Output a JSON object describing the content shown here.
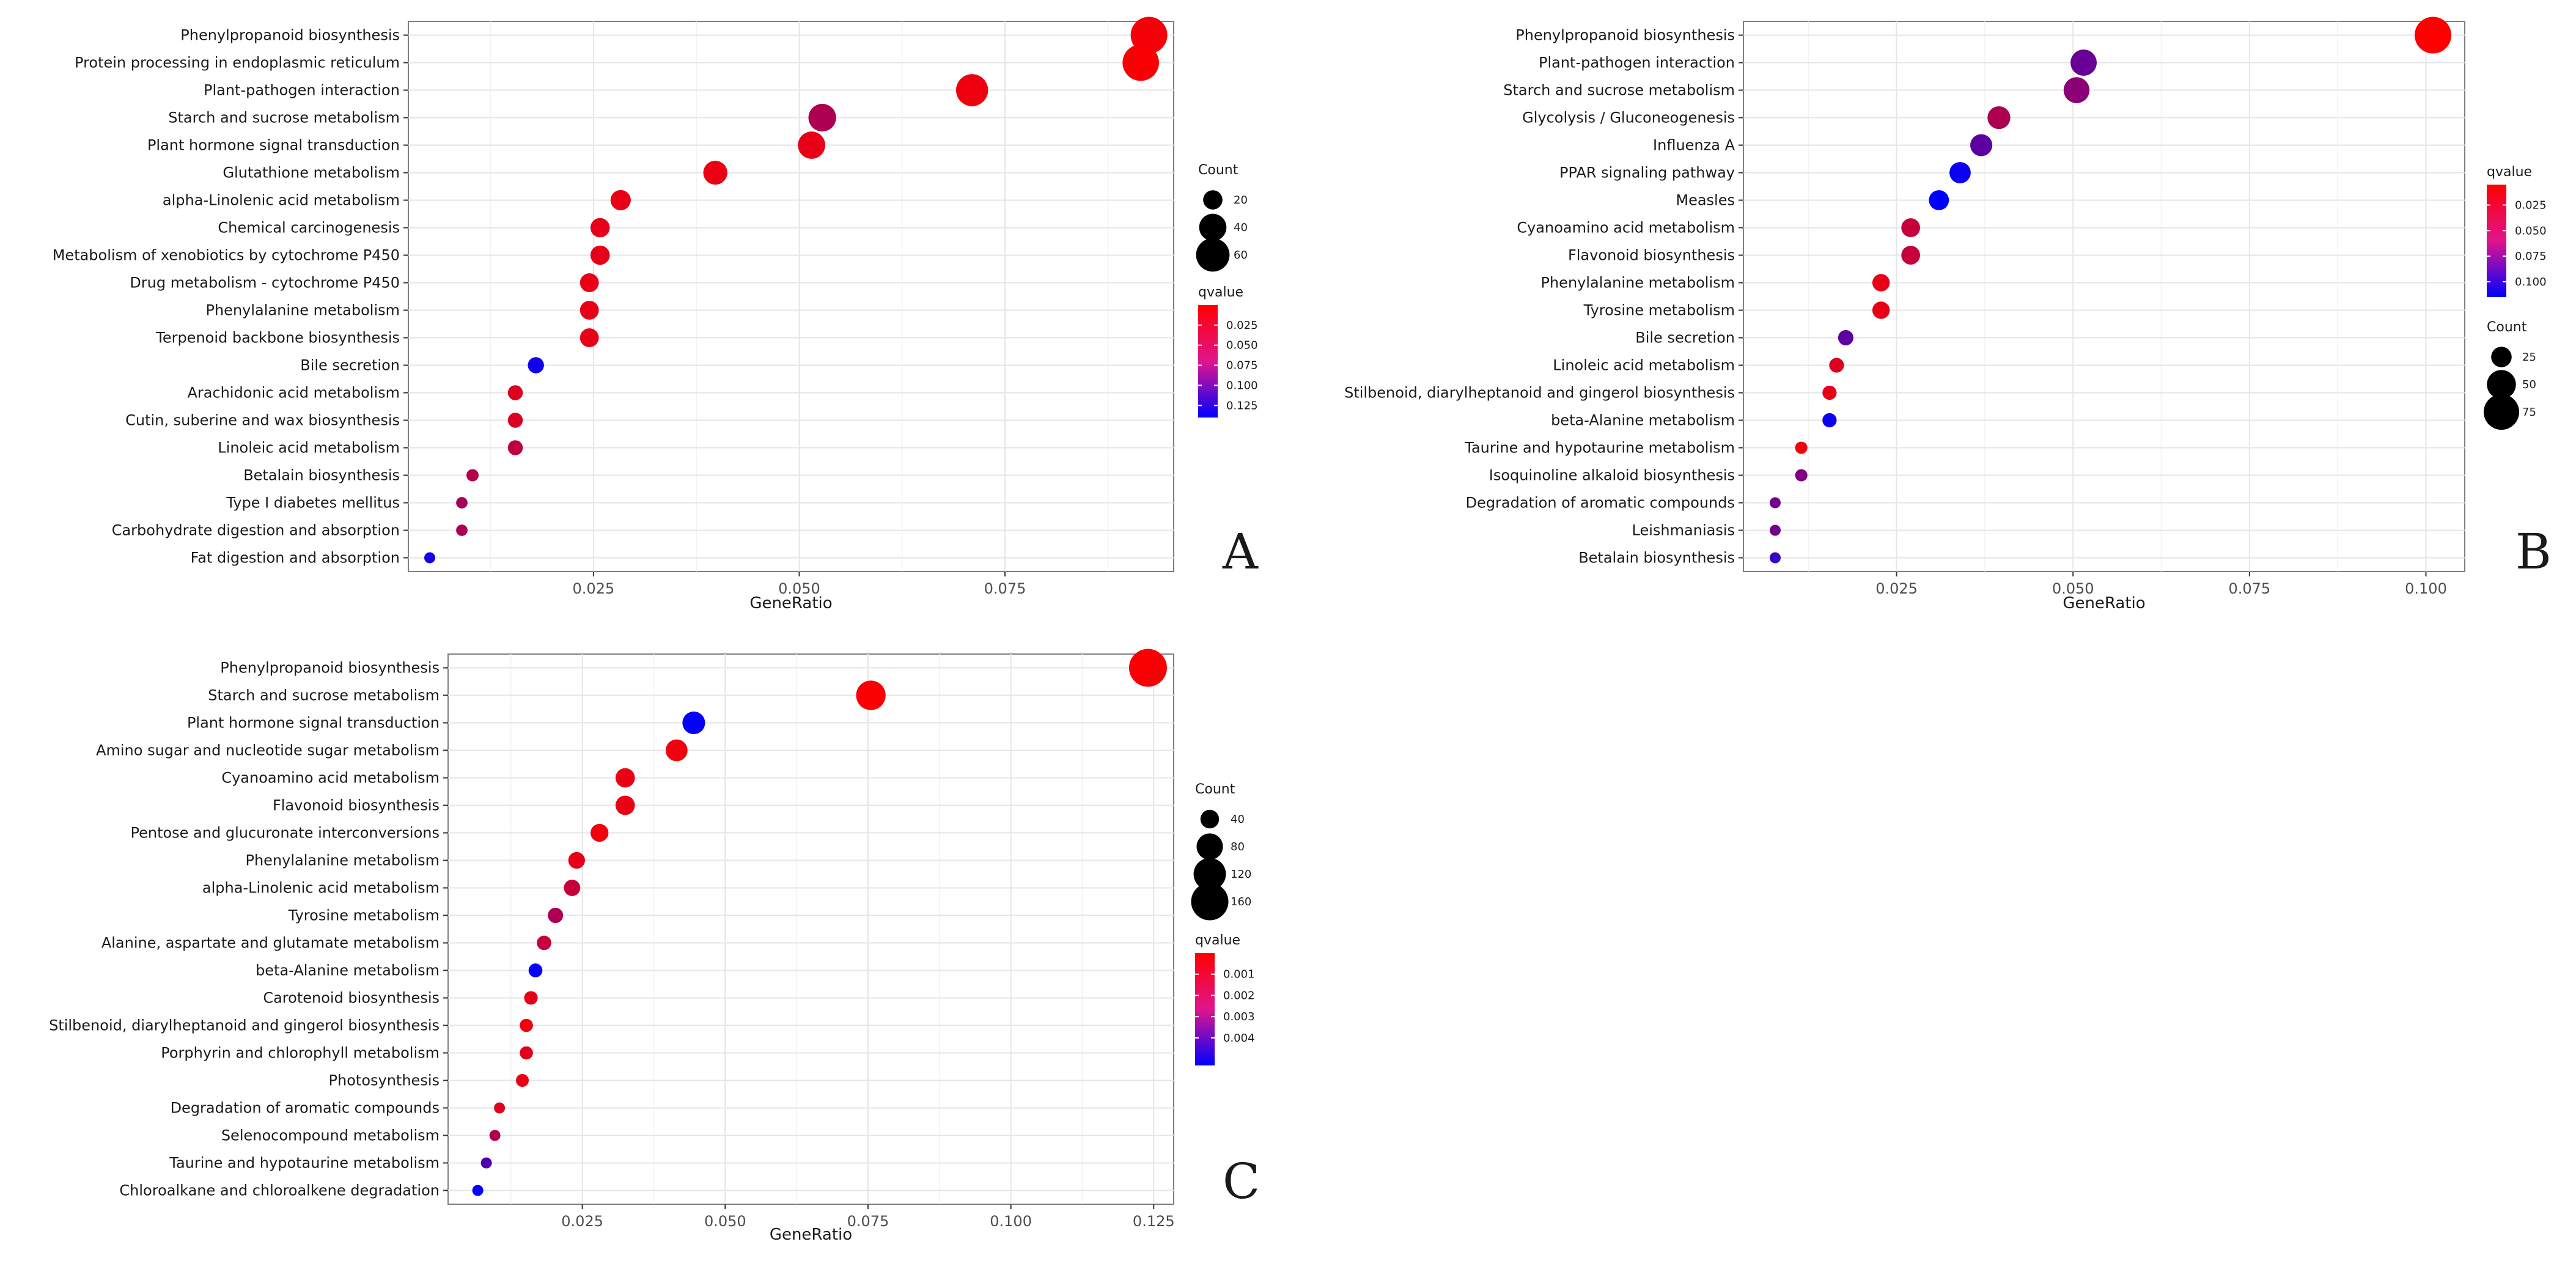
{
  "figure_labels": [
    "A",
    "B",
    "C"
  ],
  "chart_data": [
    {
      "type": "scatter",
      "panel": "A",
      "xlabel": "GeneRatio",
      "xlim": [
        0.0025,
        0.0955
      ],
      "xticks": [
        "0.025",
        "0.050",
        "0.075"
      ],
      "xtick_values": [
        0.025,
        0.05,
        0.075
      ],
      "categories": [
        "Phenylpropanoid biosynthesis",
        "Protein processing in endoplasmic reticulum",
        "Plant-pathogen interaction",
        "Starch and sucrose metabolism",
        "Plant hormone signal transduction",
        "Glutathione metabolism",
        "alpha-Linolenic acid metabolism",
        "Chemical carcinogenesis",
        "Metabolism of xenobiotics by cytochrome P450",
        "Drug metabolism - cytochrome P450",
        "Phenylalanine metabolism",
        "Terpenoid backbone biosynthesis",
        "Bile secretion",
        "Arachidonic acid metabolism",
        "Cutin, suberine and wax biosynthesis",
        "Linoleic acid metabolism",
        "Betalain biosynthesis",
        "Type I diabetes mellitus",
        "Carbohydrate digestion and absorption",
        "Fat digestion and absorption"
      ],
      "gene_ratio": [
        0.0925,
        0.0915,
        0.071,
        0.0528,
        0.0515,
        0.0398,
        0.0283,
        0.0258,
        0.0258,
        0.0245,
        0.0245,
        0.0245,
        0.018,
        0.0155,
        0.0155,
        0.0155,
        0.0103,
        0.009,
        0.009,
        0.0051
      ],
      "count": [
        72,
        71,
        55,
        41,
        40,
        31,
        22,
        20,
        20,
        19,
        19,
        19,
        14,
        12,
        12,
        12,
        8,
        7,
        7,
        4
      ],
      "qvalue": [
        0.005,
        0.003,
        0.008,
        0.045,
        0.012,
        0.01,
        0.012,
        0.014,
        0.014,
        0.012,
        0.013,
        0.012,
        0.13,
        0.018,
        0.02,
        0.035,
        0.04,
        0.05,
        0.045,
        0.13
      ],
      "size_legend": {
        "title": "Count",
        "values": [
          20,
          40,
          60
        ],
        "labels": [
          "20",
          "40",
          "60"
        ]
      },
      "color_legend": {
        "title": "qvalue",
        "range": [
          0.0,
          0.14
        ],
        "ticks": [
          0.025,
          0.05,
          0.075,
          0.1,
          0.125
        ],
        "labels": [
          "0.025",
          "0.050",
          "0.075",
          "0.100",
          "0.125"
        ],
        "low_color": "#FF0000",
        "high_color": "#0000FF"
      }
    },
    {
      "type": "scatter",
      "panel": "B",
      "xlabel": "GeneRatio",
      "xlim": [
        0.0033,
        0.1055
      ],
      "xticks": [
        "0.025",
        "0.050",
        "0.075",
        "0.100"
      ],
      "xtick_values": [
        0.025,
        0.05,
        0.075,
        0.1
      ],
      "categories": [
        "Phenylpropanoid biosynthesis",
        "Plant-pathogen interaction",
        "Starch and sucrose metabolism",
        "Glycolysis / Gluconeogenesis",
        "Influenza A",
        "PPAR signaling pathway",
        "Measles",
        "Cyanoamino acid metabolism",
        "Flavonoid biosynthesis",
        "Phenylalanine metabolism",
        "Tyrosine metabolism",
        "Bile secretion",
        "Linoleic acid metabolism",
        "Stilbenoid, diarylheptanoid and gingerol biosynthesis",
        "beta-Alanine metabolism",
        "Taurine and hypotaurine metabolism",
        "Isoquinoline alkaloid biosynthesis",
        "Degradation of aromatic compounds",
        "Leishmaniasis",
        "Betalain biosynthesis"
      ],
      "gene_ratio": [
        0.101,
        0.0515,
        0.0505,
        0.0395,
        0.037,
        0.034,
        0.031,
        0.027,
        0.027,
        0.0228,
        0.0228,
        0.0178,
        0.0165,
        0.0155,
        0.0155,
        0.0115,
        0.0115,
        0.0078,
        0.0078,
        0.0078
      ],
      "count": [
        80,
        41,
        40,
        31,
        29,
        27,
        24,
        21,
        21,
        18,
        18,
        14,
        13,
        12,
        12,
        9,
        9,
        6,
        6,
        6
      ],
      "qvalue": [
        0.005,
        0.07,
        0.055,
        0.04,
        0.075,
        0.11,
        0.115,
        0.03,
        0.03,
        0.015,
        0.015,
        0.075,
        0.02,
        0.015,
        0.11,
        0.01,
        0.06,
        0.065,
        0.065,
        0.09
      ],
      "size_legend": {
        "title": "Count",
        "values": [
          25,
          50,
          75
        ],
        "labels": [
          "25",
          "50",
          "75"
        ]
      },
      "color_legend": {
        "title": "qvalue",
        "range": [
          0.005,
          0.115
        ],
        "ticks": [
          0.025,
          0.05,
          0.075,
          0.1
        ],
        "labels": [
          "0.025",
          "0.050",
          "0.075",
          "0.100"
        ],
        "low_color": "#FF0000",
        "high_color": "#0000FF"
      }
    },
    {
      "type": "scatter",
      "panel": "C",
      "xlabel": "GeneRatio",
      "xlim": [
        0.0015,
        0.1285
      ],
      "xticks": [
        "0.025",
        "0.050",
        "0.075",
        "0.100",
        "0.125"
      ],
      "xtick_values": [
        0.025,
        0.05,
        0.075,
        0.1,
        0.125
      ],
      "categories": [
        "Phenylpropanoid biosynthesis",
        "Starch and sucrose metabolism",
        "Plant hormone signal transduction",
        "Amino sugar and nucleotide sugar metabolism",
        "Cyanoamino acid metabolism",
        "Flavonoid biosynthesis",
        "Pentose and glucuronate interconversions",
        "Phenylalanine metabolism",
        "alpha-Linolenic acid metabolism",
        "Tyrosine metabolism",
        "Alanine, aspartate and glutamate metabolism",
        "beta-Alanine metabolism",
        "Carotenoid biosynthesis",
        "Stilbenoid, diarylheptanoid and gingerol biosynthesis",
        "Porphyrin and chlorophyll metabolism",
        "Photosynthesis",
        "Degradation of aromatic compounds",
        "Selenocompound metabolism",
        "Taurine and hypotaurine metabolism",
        "Chloroalkane and chloroalkene degradation"
      ],
      "gene_ratio": [
        0.124,
        0.0755,
        0.0445,
        0.0415,
        0.0325,
        0.0325,
        0.028,
        0.024,
        0.0232,
        0.0203,
        0.0183,
        0.0168,
        0.016,
        0.0152,
        0.0152,
        0.0145,
        0.0105,
        0.0097,
        0.0082,
        0.0067
      ],
      "count": [
        165,
        100,
        59,
        55,
        43,
        43,
        37,
        32,
        31,
        27,
        24,
        22,
        21,
        20,
        20,
        19,
        14,
        13,
        11,
        9
      ],
      "qvalue": [
        0.0001,
        0.0001,
        0.0052,
        0.0003,
        0.0004,
        0.0004,
        0.0003,
        0.0005,
        0.0012,
        0.0017,
        0.0012,
        0.0052,
        0.0005,
        0.0003,
        0.0006,
        0.0004,
        0.0006,
        0.0017,
        0.0037,
        0.0052
      ],
      "size_legend": {
        "title": "Count",
        "values": [
          40,
          80,
          120,
          160
        ],
        "labels": [
          "40",
          "80",
          "120",
          "160"
        ]
      },
      "color_legend": {
        "title": "qvalue",
        "range": [
          0.0,
          0.0053
        ],
        "ticks": [
          0.001,
          0.002,
          0.003,
          0.004
        ],
        "labels": [
          "0.001",
          "0.002",
          "0.003",
          "0.004"
        ],
        "low_color": "#FF0000",
        "high_color": "#0000FF"
      }
    }
  ]
}
